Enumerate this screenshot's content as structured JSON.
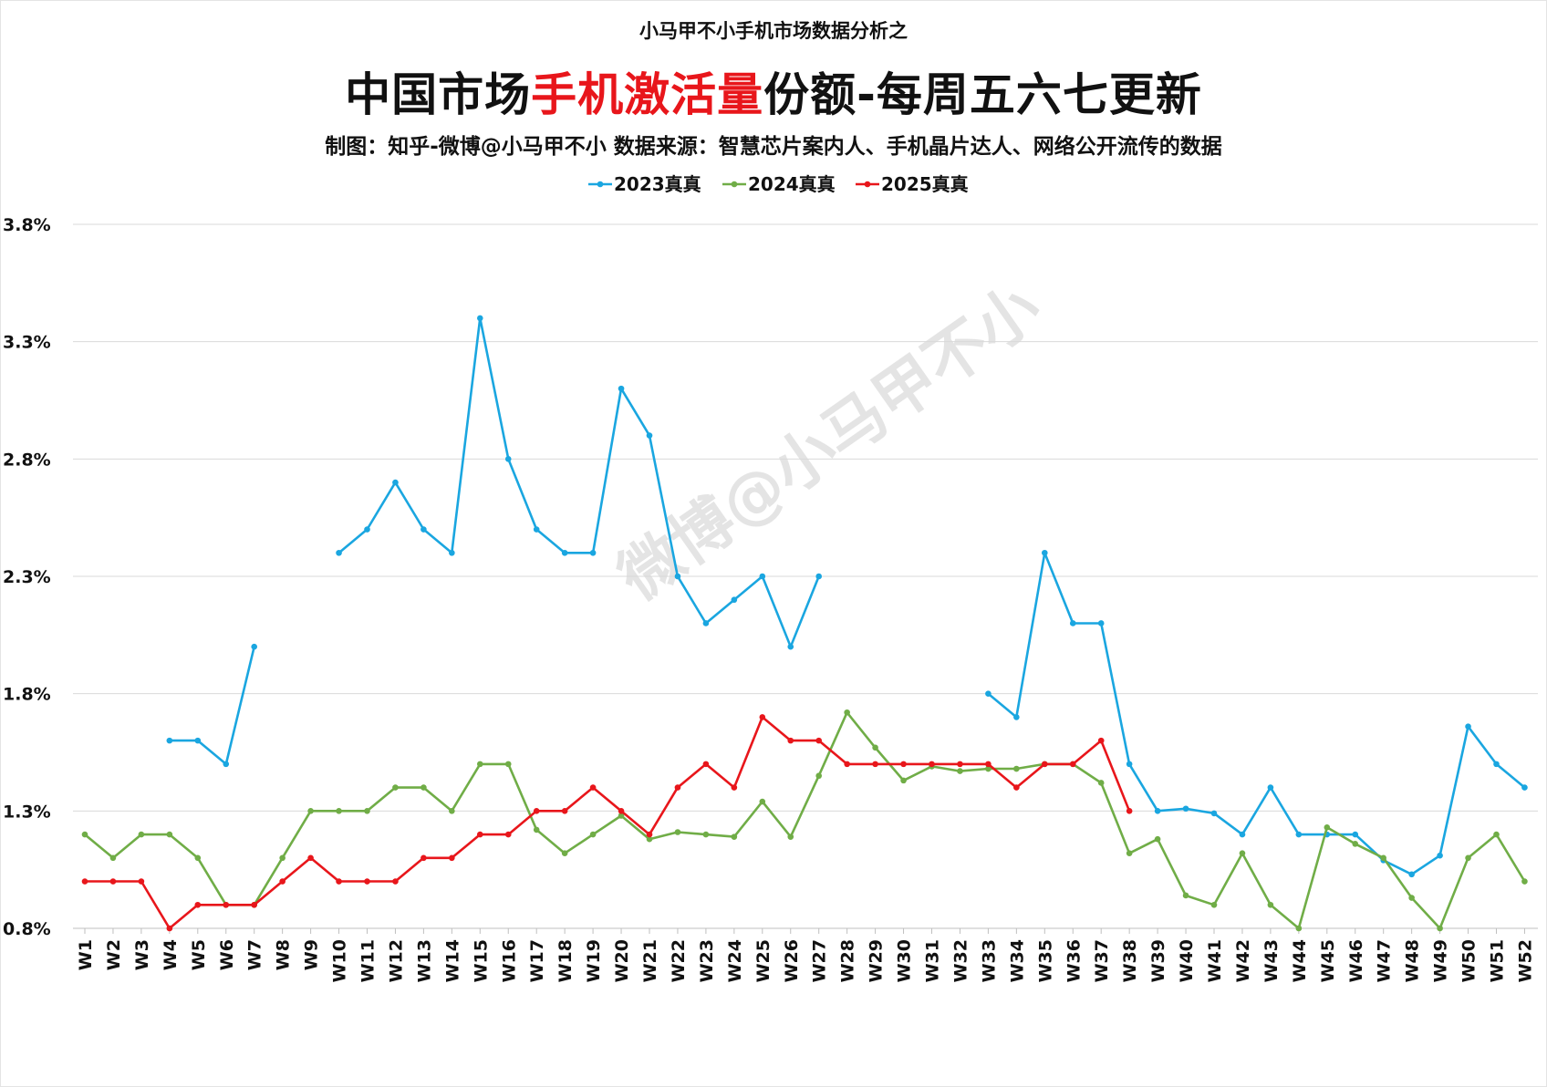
{
  "header": {
    "suptitle": "小马甲不小手机市场数据分析之",
    "title_pre": "中国市场",
    "title_highlight": "手机激活量",
    "title_post": "份额-每周五六七更新",
    "subtitle": "制图：知乎-微博@小马甲不小  数据来源：智慧芯片案内人、手机晶片达人、网络公开流传的数据"
  },
  "watermark": "微博@小马甲不小",
  "colors": {
    "2023": "#1aa6e0",
    "2024": "#70ad47",
    "2025": "#e8161b",
    "title_highlight": "#e8161b",
    "grid": "#d9d9d9"
  },
  "chart_data": {
    "type": "line",
    "categories": [
      "W1",
      "W2",
      "W3",
      "W4",
      "W5",
      "W6",
      "W7",
      "W8",
      "W9",
      "W10",
      "W11",
      "W12",
      "W13",
      "W14",
      "W15",
      "W16",
      "W17",
      "W18",
      "W19",
      "W20",
      "W21",
      "W22",
      "W23",
      "W24",
      "W25",
      "W26",
      "W27",
      "W28",
      "W29",
      "W30",
      "W31",
      "W32",
      "W33",
      "W34",
      "W35",
      "W36",
      "W37",
      "W38",
      "W39",
      "W40",
      "W41",
      "W42",
      "W43",
      "W44",
      "W45",
      "W46",
      "W47",
      "W48",
      "W49",
      "W50",
      "W51",
      "W52"
    ],
    "ylim": [
      0.8,
      3.8
    ],
    "yticks": [
      "0.8%",
      "1.3%",
      "1.8%",
      "2.3%",
      "2.8%",
      "3.3%",
      "3.8%"
    ],
    "grid": "horizontal",
    "legend_position": "top-center",
    "series": [
      {
        "name": "2023真真",
        "color": "#1aa6e0",
        "values": [
          null,
          null,
          null,
          1.6,
          1.6,
          1.5,
          2.0,
          null,
          null,
          2.4,
          2.5,
          2.7,
          2.5,
          2.4,
          3.4,
          2.8,
          2.5,
          2.4,
          2.4,
          3.1,
          2.9,
          2.3,
          2.1,
          2.2,
          2.3,
          2.0,
          2.3,
          null,
          null,
          null,
          null,
          null,
          1.8,
          1.7,
          2.4,
          2.1,
          2.1,
          1.5,
          1.3,
          1.31,
          1.29,
          1.2,
          1.4,
          1.2,
          1.2,
          1.2,
          1.09,
          1.03,
          1.11,
          1.66,
          1.5,
          1.4
        ]
      },
      {
        "name": "2024真真",
        "color": "#70ad47",
        "values": [
          1.2,
          1.1,
          1.2,
          1.2,
          1.1,
          0.9,
          0.9,
          1.1,
          1.3,
          1.3,
          1.3,
          1.4,
          1.4,
          1.3,
          1.5,
          1.5,
          1.22,
          1.12,
          1.2,
          1.28,
          1.18,
          1.21,
          1.2,
          1.19,
          1.34,
          1.19,
          1.45,
          1.72,
          1.57,
          1.43,
          1.49,
          1.47,
          1.48,
          1.48,
          1.5,
          1.5,
          1.42,
          1.12,
          1.18,
          0.94,
          0.9,
          1.12,
          0.9,
          0.8,
          1.23,
          1.16,
          1.1,
          0.93,
          0.8,
          1.1,
          1.2,
          1.0
        ]
      },
      {
        "name": "2025真真",
        "color": "#e8161b",
        "values": [
          1.0,
          1.0,
          1.0,
          0.8,
          0.9,
          0.9,
          0.9,
          1.0,
          1.1,
          1.0,
          1.0,
          1.0,
          1.1,
          1.1,
          1.2,
          1.2,
          1.3,
          1.3,
          1.4,
          1.3,
          1.2,
          1.4,
          1.5,
          1.4,
          1.7,
          1.6,
          1.6,
          1.5,
          1.5,
          1.5,
          1.5,
          1.5,
          1.5,
          1.4,
          1.5,
          1.5,
          1.6,
          1.3,
          null,
          null,
          null,
          null,
          null,
          null,
          null,
          null,
          null,
          null,
          null,
          null,
          null,
          null
        ]
      }
    ]
  }
}
